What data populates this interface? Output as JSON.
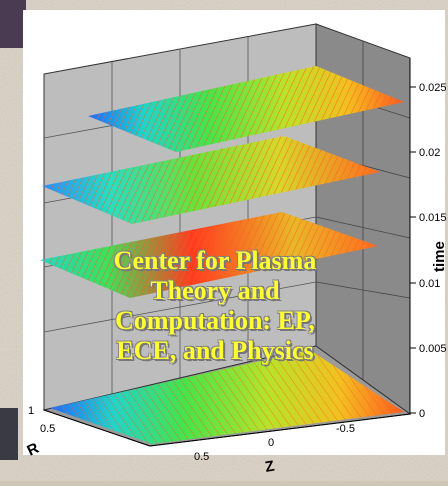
{
  "overlay_title": {
    "line1": "Center for Plasma",
    "line2": "Theory and",
    "line3": "Computation: EP,",
    "line4": "ECE, and Physics"
  },
  "axes": {
    "time": {
      "label": "time",
      "ticks": [
        "0.025",
        "0.02",
        "0.015",
        "0.01",
        "0.005",
        "0"
      ]
    },
    "r": {
      "label": "R",
      "ticks": [
        "1",
        "0.5"
      ]
    },
    "z": {
      "label": "Z",
      "ticks": [
        "0.5",
        "0",
        "-0.5"
      ]
    }
  },
  "colors": {
    "box_back": "#bdbdbd",
    "box_side": "#8a8a8a",
    "contour": "#ff5a1f",
    "title_text": "#ffff33"
  }
}
